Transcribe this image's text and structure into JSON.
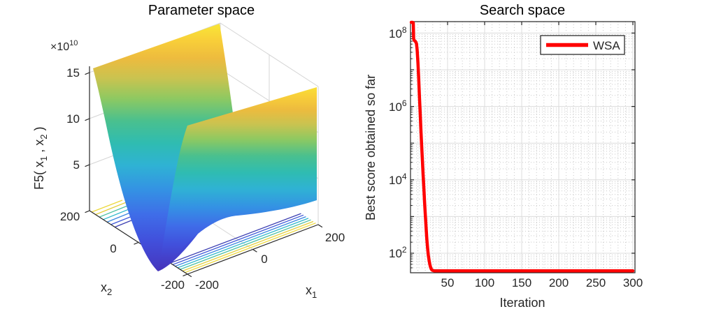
{
  "figure": {
    "background": "#ffffff"
  },
  "left_plot": {
    "title": "Parameter space",
    "z_exponent": {
      "base": "×10",
      "exp": "10"
    },
    "z_ticks": [
      "15",
      "10",
      "5"
    ],
    "zlabel_parts": {
      "p1": "F5( x",
      "sub1": "1",
      "p2": " , x",
      "sub2": "2",
      "p3": " )"
    },
    "x1_label": {
      "base": "x",
      "sub": "1"
    },
    "x2_label": {
      "base": "x",
      "sub": "2"
    },
    "x1_ticks": [
      "-200",
      "0",
      "200"
    ],
    "x2_ticks": [
      "200",
      "0",
      "-200"
    ],
    "colormap": "parula-like"
  },
  "right_plot": {
    "title": "Search space",
    "ylabel": "Best score obtained so far",
    "xlabel": "Iteration",
    "x_ticks": [
      "50",
      "100",
      "150",
      "200",
      "250",
      "300"
    ],
    "y_ticks": [
      {
        "base": "10",
        "exp": "8"
      },
      {
        "base": "10",
        "exp": "6"
      },
      {
        "base": "10",
        "exp": "4"
      },
      {
        "base": "10",
        "exp": "2"
      }
    ],
    "legend": {
      "label": "WSA",
      "line_color": "#ff0000"
    }
  },
  "chart_data": [
    {
      "type": "surface",
      "title": "Parameter space",
      "xlabel": "x1",
      "ylabel": "x2",
      "zlabel": "F5( x1 , x2 )",
      "x_range": [
        -200,
        200
      ],
      "y_range": [
        -200,
        200
      ],
      "z_tick_values": [
        50000000000.0,
        100000000000.0,
        150000000000.0
      ],
      "z_max_approx": 160000000000.0,
      "colormap": "parula",
      "shape_note": "steep valley running along x1; walls rise to ~1.55e11 at x2 = +/-200, minimum near z=0",
      "floor_contours": true
    },
    {
      "type": "line",
      "title": "Search space",
      "xlabel": "Iteration",
      "ylabel": "Best score obtained so far",
      "x_range": [
        0,
        300
      ],
      "y_scale": "log10",
      "y_range": [
        29,
        210000000
      ],
      "x_major_ticks": [
        50,
        100,
        150,
        200,
        250,
        300
      ],
      "y_major_ticks": [
        100,
        10000,
        1000000,
        100000000
      ],
      "grid": "major solid + minor dotted",
      "legend_position": "top-right",
      "series": [
        {
          "name": "WSA",
          "color": "#ff0000",
          "points": [
            [
              1,
              210000000
            ],
            [
              2,
              205000000
            ],
            [
              3,
              195000000
            ],
            [
              3.8,
              190000000
            ],
            [
              4.2,
              70000000
            ],
            [
              5,
              63000000
            ],
            [
              6.5,
              60000000
            ],
            [
              8,
              52000000
            ],
            [
              9,
              35000000
            ],
            [
              10,
              16000000
            ],
            [
              11,
              6000000
            ],
            [
              12,
              2000000
            ],
            [
              13,
              700000
            ],
            [
              14,
              250000
            ],
            [
              15,
              90000
            ],
            [
              16,
              35000
            ],
            [
              17,
              14000
            ],
            [
              18,
              6000
            ],
            [
              19,
              2500
            ],
            [
              20,
              1100
            ],
            [
              21,
              500
            ],
            [
              22,
              250
            ],
            [
              23,
              140
            ],
            [
              24,
              90
            ],
            [
              25,
              65
            ],
            [
              26,
              50
            ],
            [
              27,
              42
            ],
            [
              28,
              37
            ],
            [
              29,
              35
            ],
            [
              30,
              34
            ],
            [
              32,
              33
            ],
            [
              36,
              33
            ],
            [
              40,
              33
            ],
            [
              50,
              33
            ],
            [
              75,
              33
            ],
            [
              100,
              33
            ],
            [
              150,
              33
            ],
            [
              200,
              33
            ],
            [
              250,
              33
            ],
            [
              300,
              33
            ]
          ]
        }
      ]
    }
  ]
}
